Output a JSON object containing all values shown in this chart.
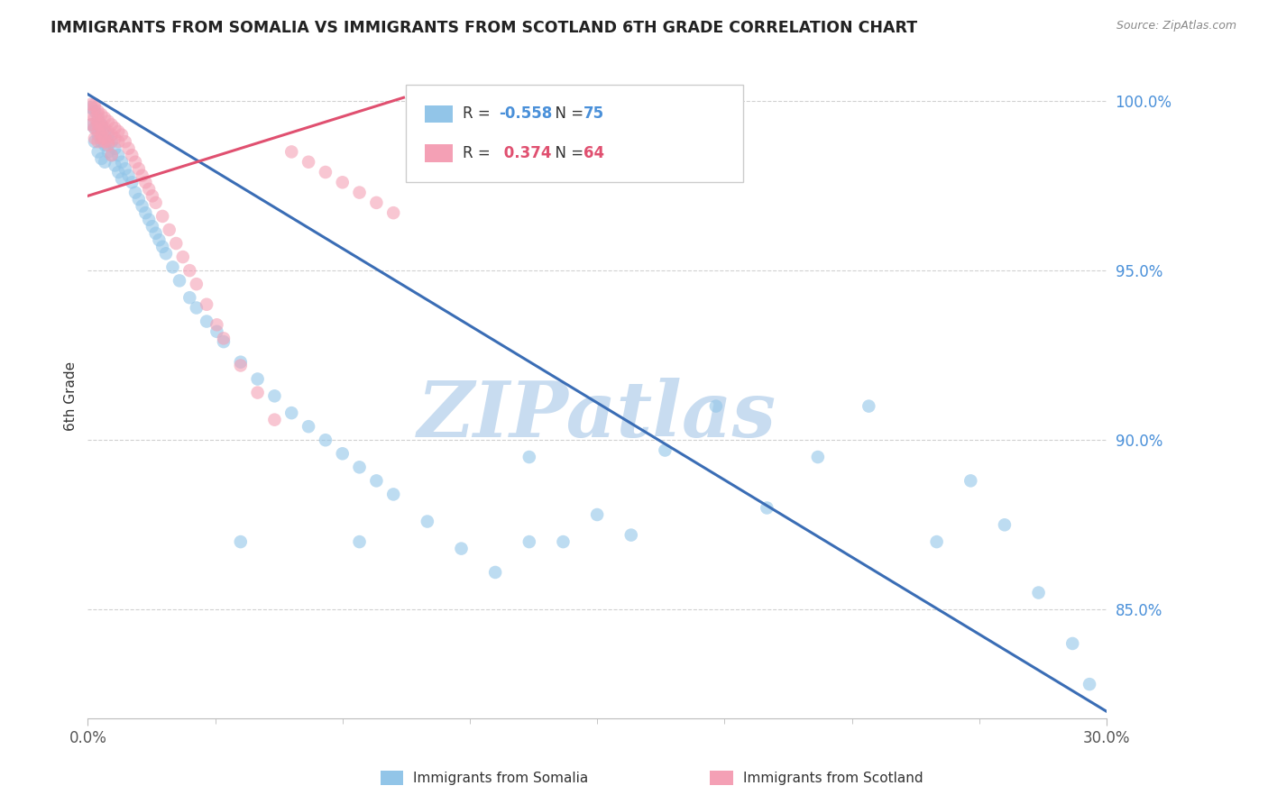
{
  "title": "IMMIGRANTS FROM SOMALIA VS IMMIGRANTS FROM SCOTLAND 6TH GRADE CORRELATION CHART",
  "source": "Source: ZipAtlas.com",
  "xlabel_somalia": "Immigrants from Somalia",
  "xlabel_scotland": "Immigrants from Scotland",
  "ylabel": "6th Grade",
  "xlim": [
    0.0,
    0.3
  ],
  "ylim": [
    0.818,
    1.008
  ],
  "ytick_vals": [
    1.0,
    0.95,
    0.9,
    0.85
  ],
  "ytick_labels": [
    "100.0%",
    "95.0%",
    "90.0%",
    "85.0%"
  ],
  "xtick_vals": [
    0.0,
    0.3
  ],
  "xtick_labels": [
    "0.0%",
    "30.0%"
  ],
  "R_somalia": -0.558,
  "N_somalia": 75,
  "R_scotland": 0.374,
  "N_scotland": 64,
  "color_somalia": "#92C5E8",
  "color_scotland": "#F4A0B5",
  "line_color_somalia": "#3A6DB5",
  "line_color_scotland": "#E05070",
  "watermark": "ZIPatlas",
  "watermark_color": "#C8DCF0",
  "somalia_x": [
    0.001,
    0.001,
    0.002,
    0.002,
    0.002,
    0.003,
    0.003,
    0.003,
    0.004,
    0.004,
    0.004,
    0.005,
    0.005,
    0.005,
    0.006,
    0.006,
    0.007,
    0.007,
    0.008,
    0.008,
    0.009,
    0.009,
    0.01,
    0.01,
    0.011,
    0.012,
    0.013,
    0.014,
    0.015,
    0.016,
    0.017,
    0.018,
    0.019,
    0.02,
    0.021,
    0.022,
    0.023,
    0.025,
    0.027,
    0.03,
    0.032,
    0.035,
    0.038,
    0.04,
    0.045,
    0.05,
    0.055,
    0.06,
    0.065,
    0.07,
    0.075,
    0.08,
    0.085,
    0.09,
    0.1,
    0.11,
    0.12,
    0.13,
    0.14,
    0.15,
    0.16,
    0.17,
    0.185,
    0.2,
    0.215,
    0.23,
    0.25,
    0.26,
    0.27,
    0.28,
    0.29,
    0.295,
    0.08,
    0.045,
    0.13
  ],
  "somalia_y": [
    0.998,
    0.993,
    0.997,
    0.992,
    0.988,
    0.995,
    0.99,
    0.985,
    0.993,
    0.988,
    0.983,
    0.991,
    0.987,
    0.982,
    0.99,
    0.985,
    0.988,
    0.984,
    0.986,
    0.981,
    0.984,
    0.979,
    0.982,
    0.977,
    0.98,
    0.978,
    0.976,
    0.973,
    0.971,
    0.969,
    0.967,
    0.965,
    0.963,
    0.961,
    0.959,
    0.957,
    0.955,
    0.951,
    0.947,
    0.942,
    0.939,
    0.935,
    0.932,
    0.929,
    0.923,
    0.918,
    0.913,
    0.908,
    0.904,
    0.9,
    0.896,
    0.892,
    0.888,
    0.884,
    0.876,
    0.868,
    0.861,
    0.895,
    0.87,
    0.878,
    0.872,
    0.897,
    0.91,
    0.88,
    0.895,
    0.91,
    0.87,
    0.888,
    0.875,
    0.855,
    0.84,
    0.828,
    0.87,
    0.87,
    0.87
  ],
  "scotland_x": [
    0.001,
    0.001,
    0.001,
    0.002,
    0.002,
    0.002,
    0.002,
    0.003,
    0.003,
    0.003,
    0.003,
    0.004,
    0.004,
    0.004,
    0.005,
    0.005,
    0.005,
    0.006,
    0.006,
    0.006,
    0.007,
    0.007,
    0.008,
    0.008,
    0.009,
    0.009,
    0.01,
    0.011,
    0.012,
    0.013,
    0.014,
    0.015,
    0.016,
    0.017,
    0.018,
    0.019,
    0.02,
    0.022,
    0.024,
    0.026,
    0.028,
    0.03,
    0.032,
    0.035,
    0.038,
    0.04,
    0.045,
    0.05,
    0.055,
    0.06,
    0.065,
    0.07,
    0.075,
    0.08,
    0.085,
    0.09,
    0.003,
    0.004,
    0.002,
    0.005,
    0.006,
    0.007,
    0.003,
    0.004
  ],
  "scotland_y": [
    0.999,
    0.996,
    0.993,
    0.998,
    0.995,
    0.992,
    0.989,
    0.997,
    0.994,
    0.991,
    0.988,
    0.996,
    0.993,
    0.99,
    0.995,
    0.992,
    0.989,
    0.994,
    0.991,
    0.988,
    0.993,
    0.99,
    0.992,
    0.989,
    0.991,
    0.988,
    0.99,
    0.988,
    0.986,
    0.984,
    0.982,
    0.98,
    0.978,
    0.976,
    0.974,
    0.972,
    0.97,
    0.966,
    0.962,
    0.958,
    0.954,
    0.95,
    0.946,
    0.94,
    0.934,
    0.93,
    0.922,
    0.914,
    0.906,
    0.985,
    0.982,
    0.979,
    0.976,
    0.973,
    0.97,
    0.967,
    0.996,
    0.992,
    0.999,
    0.988,
    0.987,
    0.984,
    0.993,
    0.989
  ],
  "somalia_line_x": [
    0.0,
    0.3
  ],
  "somalia_line_y": [
    1.002,
    0.82
  ],
  "scotland_line_x": [
    0.0,
    0.093
  ],
  "scotland_line_y": [
    0.972,
    1.001
  ]
}
